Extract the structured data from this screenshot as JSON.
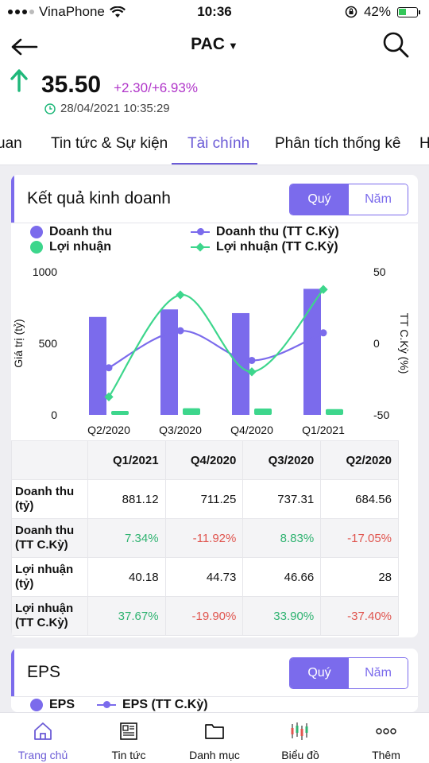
{
  "status": {
    "carrier": "VinaPhone",
    "time": "10:36",
    "battery": "42%"
  },
  "header": {
    "symbol": "PAC",
    "price": "35.50",
    "change": "+2.30/+6.93%",
    "datetime": "28/04/2021 10:35:29"
  },
  "tabs": [
    {
      "label": "uan"
    },
    {
      "label": "Tin tức & Sự kiện"
    },
    {
      "label": "Tài chính"
    },
    {
      "label": "Phân tích thống kê"
    },
    {
      "label": "H"
    }
  ],
  "business": {
    "title": "Kết quả kinh doanh",
    "toggle": {
      "quarter": "Quý",
      "year": "Năm"
    },
    "legend": {
      "revenue": "Doanh thu",
      "revenue_change": "Doanh thu (TT C.Kỳ)",
      "profit": "Lợi nhuận",
      "profit_change": "Lợi nhuận (TT C.Kỳ)"
    }
  },
  "chart_data": {
    "type": "bar",
    "categories": [
      "Q2/2020",
      "Q3/2020",
      "Q4/2020",
      "Q1/2021"
    ],
    "series": [
      {
        "name": "Doanh thu",
        "type": "bar",
        "axis": "left",
        "values": [
          684.56,
          737.31,
          711.25,
          881.12
        ]
      },
      {
        "name": "Lợi nhuận",
        "type": "bar",
        "axis": "left",
        "values": [
          28,
          46.66,
          44.73,
          40.18
        ]
      },
      {
        "name": "Doanh thu (TT C.Kỳ)",
        "type": "line",
        "axis": "right",
        "values": [
          -17.05,
          8.83,
          -11.92,
          7.34
        ]
      },
      {
        "name": "Lợi nhuận (TT C.Kỳ)",
        "type": "line",
        "axis": "right",
        "values": [
          -37.4,
          33.9,
          -19.9,
          37.67
        ]
      }
    ],
    "ylabel": "Giá trị (tỷ)",
    "ylabel_right": "TT C.Kỳ (%)",
    "ylim": [
      0,
      1000
    ],
    "ylim_right": [
      -50,
      50
    ],
    "yticks": [
      0,
      500,
      1000
    ],
    "yticks_right": [
      -50,
      0,
      50
    ],
    "grid": false,
    "legend_position": "top",
    "colors": {
      "revenue": "#7b6bec",
      "profit": "#3dd68c",
      "revenue_line": "#7b6bec",
      "profit_line": "#3dd68c"
    }
  },
  "table": {
    "columns": [
      "Q1/2021",
      "Q4/2020",
      "Q3/2020",
      "Q2/2020"
    ],
    "rows": [
      {
        "label1": "Doanh thu",
        "label2": "(tỷ)",
        "values": [
          "881.12",
          "711.25",
          "737.31",
          "684.56"
        ],
        "signs": [
          "",
          "",
          "",
          ""
        ]
      },
      {
        "label1": "Doanh thu",
        "label2": "(TT C.Kỳ)",
        "values": [
          "7.34%",
          "-11.92%",
          "8.83%",
          "-17.05%"
        ],
        "signs": [
          "pos",
          "neg",
          "pos",
          "neg"
        ]
      },
      {
        "label1": "Lợi nhuận",
        "label2": "(tỷ)",
        "values": [
          "40.18",
          "44.73",
          "46.66",
          "28"
        ],
        "signs": [
          "",
          "",
          "",
          ""
        ]
      },
      {
        "label1": "Lợi nhuận",
        "label2": "(TT C.Kỳ)",
        "values": [
          "37.67%",
          "-19.90%",
          "33.90%",
          "-37.40%"
        ],
        "signs": [
          "pos",
          "neg",
          "pos",
          "neg"
        ]
      }
    ]
  },
  "eps": {
    "title": "EPS",
    "toggle": {
      "quarter": "Quý",
      "year": "Năm"
    },
    "legend": {
      "eps": "EPS",
      "eps_change": "EPS (TT C.Kỳ)"
    }
  },
  "nav": [
    {
      "label": "Trang chủ",
      "icon": "home-icon"
    },
    {
      "label": "Tin tức",
      "icon": "newspaper-icon"
    },
    {
      "label": "Danh mục",
      "icon": "folder-icon"
    },
    {
      "label": "Biểu đồ",
      "icon": "candlestick-icon"
    },
    {
      "label": "Thêm",
      "icon": "more-icon"
    }
  ]
}
